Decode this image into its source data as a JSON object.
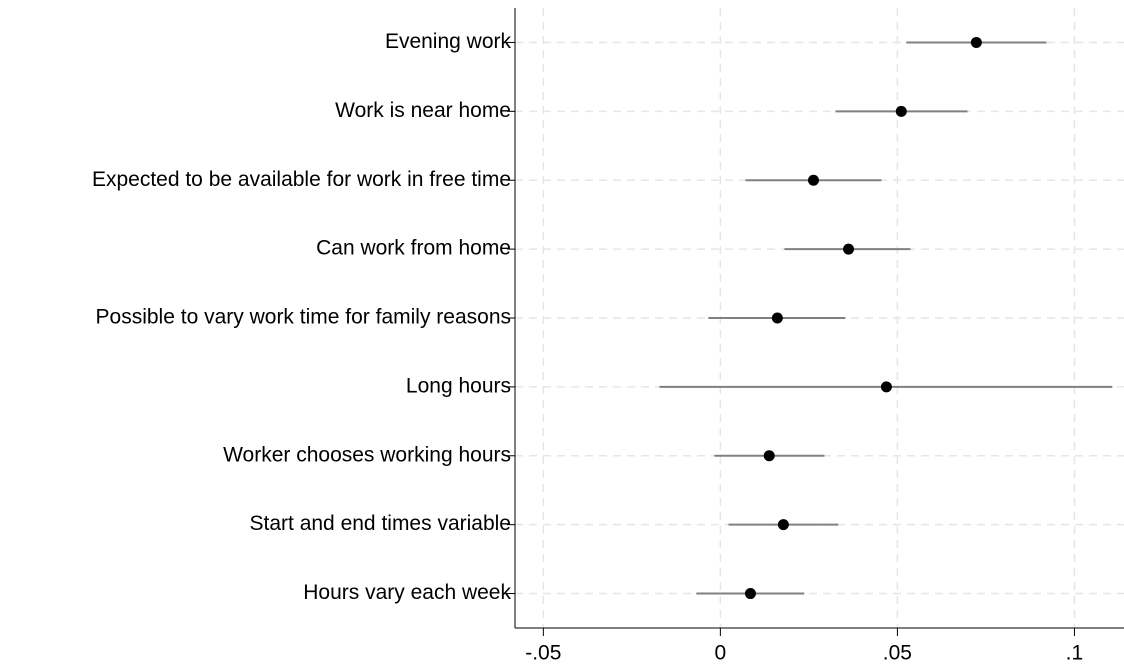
{
  "chart_data": {
    "type": "dot",
    "categories": [
      "Evening work",
      "Work is near home",
      "Expected to be available for work in free time",
      "Can work from home",
      "Possible to vary work time for family reasons",
      "Long hours",
      "Worker chooses working hours",
      "Start and end times variable",
      "Hours vary each week"
    ],
    "values": [
      0.0723,
      0.0511,
      0.0263,
      0.0362,
      0.0161,
      0.0469,
      0.0138,
      0.0178,
      0.0085
    ],
    "lower": [
      0.0525,
      0.0325,
      0.0071,
      0.0181,
      -0.0034,
      -0.0172,
      -0.0017,
      0.0023,
      -0.0068
    ],
    "upper": [
      0.0921,
      0.0698,
      0.0455,
      0.0537,
      0.0353,
      0.1107,
      0.0294,
      0.0333,
      0.0237
    ],
    "xlim": [
      -0.058,
      0.114
    ],
    "xticks": [
      {
        "value": -0.05,
        "label": "-.05"
      },
      0,
      {
        "value": 0.05,
        "label": ".05"
      },
      {
        "value": 0.1,
        "label": ".1"
      }
    ],
    "grid": true,
    "color": "#000000",
    "ci_color": "#808080"
  }
}
